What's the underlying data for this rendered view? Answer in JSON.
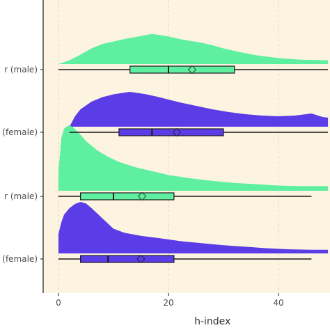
{
  "chart_data": {
    "type": "raincloud",
    "xlabel": "h-index",
    "ylabel": "",
    "xlim": [
      -3,
      49
    ],
    "x_ticks": [
      0,
      20,
      40
    ],
    "x_tick_labels": [
      "0",
      "20",
      "40"
    ],
    "background_color": "#fdf3e1",
    "grid": "vertical dashed",
    "categories": [
      "r (male)",
      "(female)",
      "r (male)",
      "(female)"
    ],
    "series": [
      {
        "fill": "#5ef0a0",
        "density": {
          "x": [
            0,
            2,
            4,
            6,
            8,
            10,
            12,
            14,
            16,
            17,
            18,
            20,
            22,
            24,
            26,
            28,
            30,
            33,
            36,
            40,
            44,
            49
          ],
          "y": [
            0,
            0.12,
            0.3,
            0.5,
            0.64,
            0.72,
            0.8,
            0.86,
            0.93,
            0.96,
            0.94,
            0.88,
            0.8,
            0.74,
            0.68,
            0.6,
            0.5,
            0.38,
            0.28,
            0.19,
            0.14,
            0.12
          ]
        },
        "box": {
          "whisker_low": 0,
          "q1": 13,
          "median": 20,
          "mean": 24.3,
          "q3": 32,
          "whisker_high": 49
        }
      },
      {
        "fill": "#5a3de6",
        "density": {
          "x": [
            2,
            3,
            4,
            6,
            8,
            10,
            12,
            13,
            14,
            16,
            18,
            20,
            22,
            25,
            28,
            31,
            34,
            37,
            40,
            43,
            46,
            47,
            48,
            49
          ],
          "y": [
            0,
            0.3,
            0.5,
            0.72,
            0.85,
            0.93,
            0.98,
            1.0,
            0.98,
            0.93,
            0.86,
            0.78,
            0.7,
            0.6,
            0.5,
            0.42,
            0.36,
            0.32,
            0.3,
            0.32,
            0.38,
            0.33,
            0.28,
            0.26
          ]
        },
        "box": {
          "whisker_low": 2,
          "q1": 11,
          "median": 17,
          "mean": 21.5,
          "q3": 30,
          "whisker_high": 49
        }
      },
      {
        "fill": "#5ef0a0",
        "density": {
          "x": [
            0,
            0.5,
            1,
            1.8,
            2.5,
            3.5,
            5,
            7,
            9,
            11,
            14,
            17,
            20,
            24,
            28,
            32,
            36,
            40,
            44,
            49
          ],
          "y": [
            0.3,
            0.8,
            0.95,
            1.0,
            0.98,
            0.9,
            0.76,
            0.62,
            0.52,
            0.44,
            0.36,
            0.3,
            0.24,
            0.19,
            0.15,
            0.12,
            0.1,
            0.08,
            0.07,
            0.07
          ]
        },
        "box": {
          "whisker_low": 0,
          "q1": 4,
          "median": 10,
          "mean": 15.2,
          "q3": 21,
          "whisker_high": 46
        }
      },
      {
        "fill": "#5a3de6",
        "density": {
          "x": [
            0,
            0.5,
            1,
            2,
            3,
            4,
            5,
            6,
            7,
            8,
            10,
            12,
            15,
            18,
            22,
            26,
            30,
            34,
            38,
            42,
            46,
            49
          ],
          "y": [
            0.38,
            0.6,
            0.75,
            0.88,
            0.96,
            1.0,
            0.97,
            0.88,
            0.78,
            0.68,
            0.48,
            0.4,
            0.34,
            0.3,
            0.24,
            0.2,
            0.16,
            0.13,
            0.1,
            0.08,
            0.07,
            0.07
          ]
        },
        "box": {
          "whisker_low": 0,
          "q1": 4,
          "median": 9,
          "mean": 15,
          "q3": 21,
          "whisker_high": 46
        }
      }
    ]
  }
}
